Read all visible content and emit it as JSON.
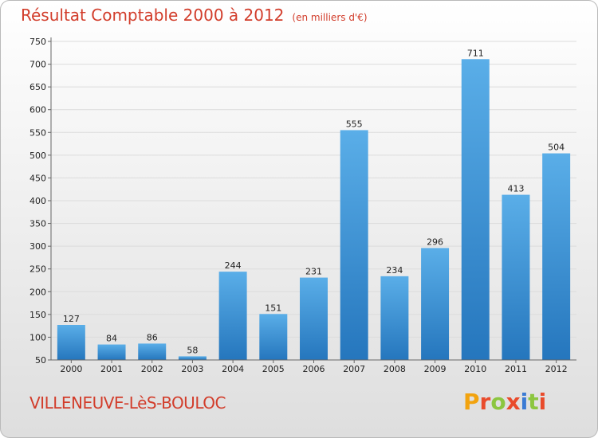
{
  "header": {
    "title": "Résultat Comptable 2000 à 2012",
    "subtitle": "(en milliers d'€)"
  },
  "footer": {
    "commune": "VILLENEUVE-LèS-BOULOC",
    "logo_text": "Proxiti"
  },
  "colors": {
    "bar": "#3f97de",
    "title": "#d23d2b",
    "grid": "#dcdcdc"
  },
  "chart_data": {
    "type": "bar",
    "title": "Résultat Comptable 2000 à 2012",
    "subtitle": "(en milliers d'€)",
    "categories": [
      "2000",
      "2001",
      "2002",
      "2003",
      "2004",
      "2005",
      "2006",
      "2007",
      "2008",
      "2009",
      "2010",
      "2011",
      "2012"
    ],
    "values": [
      127,
      84,
      86,
      58,
      244,
      151,
      231,
      555,
      234,
      296,
      711,
      413,
      504
    ],
    "ylim": [
      50,
      750
    ],
    "yticks": [
      50,
      100,
      150,
      200,
      250,
      300,
      350,
      400,
      450,
      500,
      550,
      600,
      650,
      700,
      750
    ],
    "grid": true
  }
}
